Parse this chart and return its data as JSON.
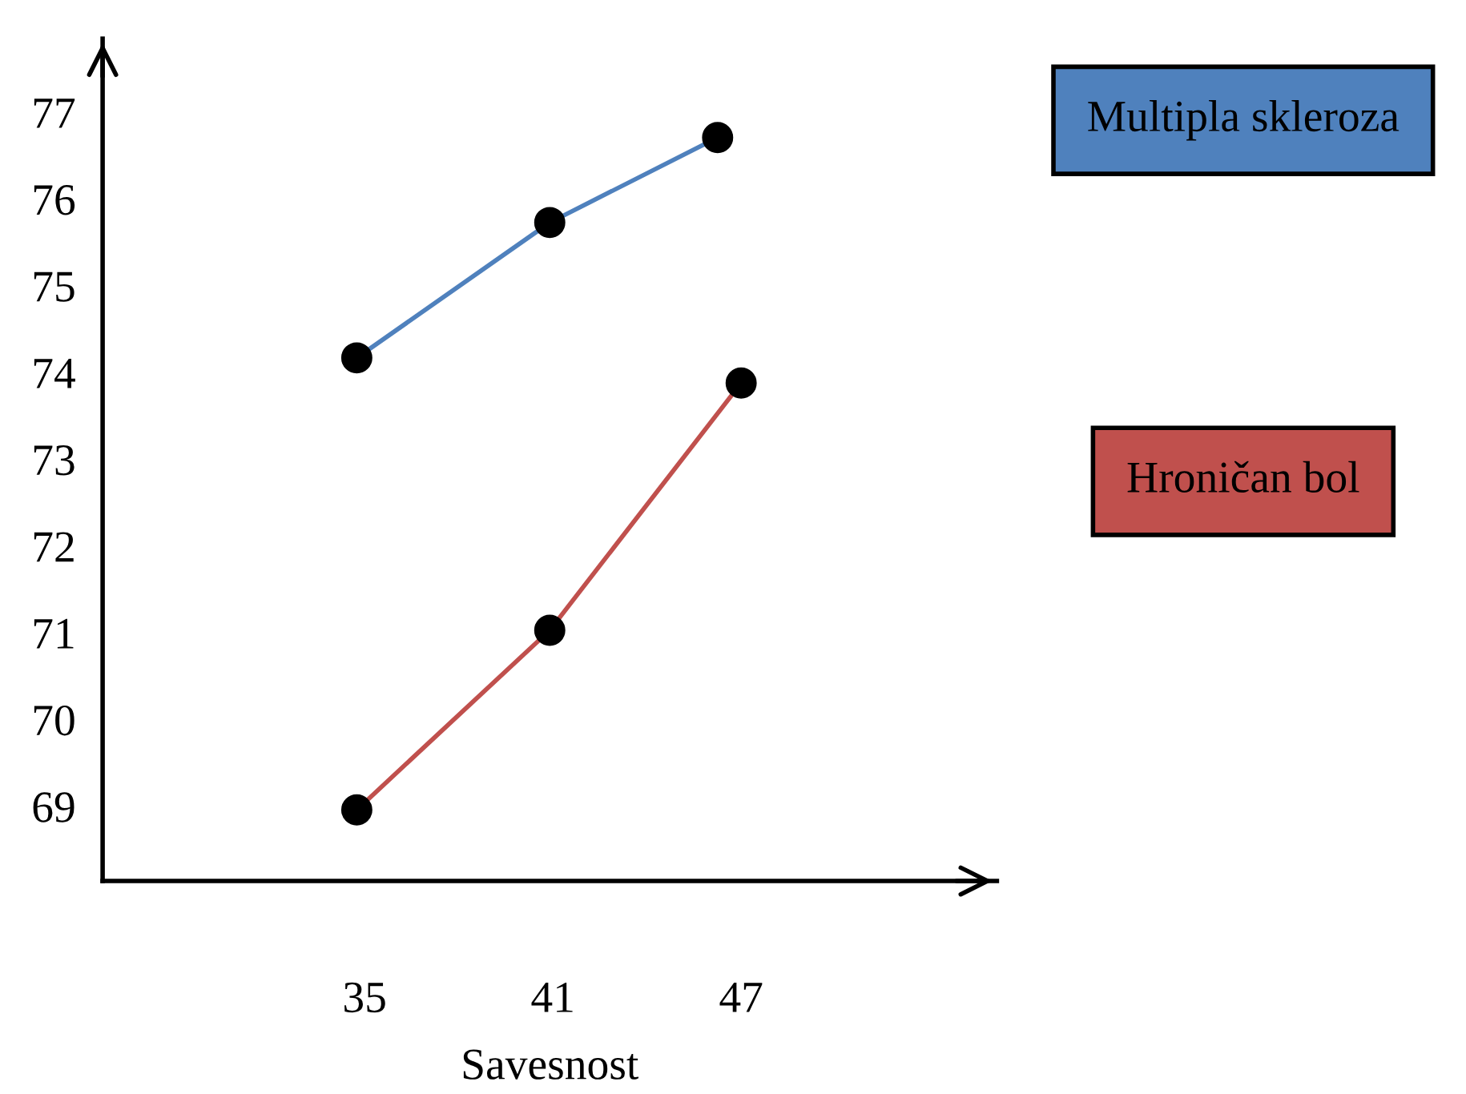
{
  "chart_data": {
    "type": "line",
    "xlabel": "Savesnost",
    "xlim": [
      26.65,
      55.15
    ],
    "ylim": [
      68.14,
      77.85
    ],
    "xticks": [
      35,
      41,
      47
    ],
    "yticks": [
      69,
      70,
      71,
      72,
      73,
      74,
      75,
      76,
      77
    ],
    "series": [
      {
        "name": "Multipla skleroza",
        "color": "#4f81bd",
        "x": [
          34.75,
          40.9,
          46.25
        ],
        "values": [
          74.17,
          75.73,
          76.71
        ]
      },
      {
        "name": "Hroničan bol",
        "color": "#c0504d",
        "x": [
          34.75,
          40.9,
          47.0
        ],
        "values": [
          68.96,
          71.03,
          73.88
        ]
      }
    ],
    "marker": "circle",
    "grid": false,
    "legend": "right"
  }
}
